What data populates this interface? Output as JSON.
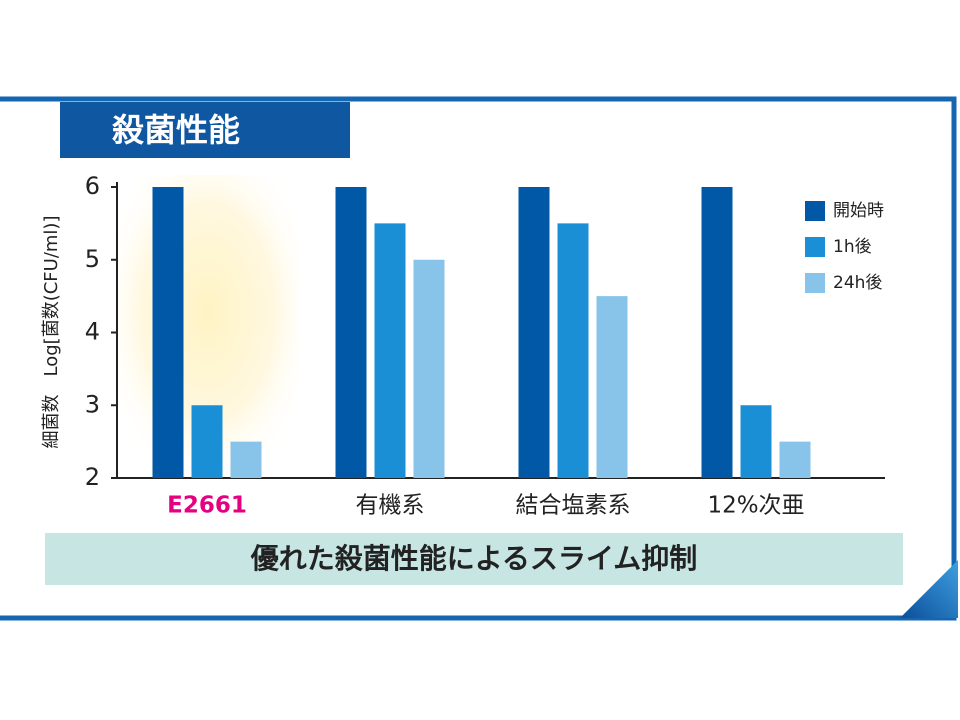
{
  "chart_data": {
    "type": "bar",
    "title": "殺菌性能",
    "y_label": "細菌数　Log[菌数(CFU/ml)]",
    "categories": [
      "E2661",
      "有機系",
      "結合塩素系",
      "12%次亜"
    ],
    "series": [
      {
        "name": "開始時",
        "color": "#0058a6",
        "values": [
          6,
          6,
          6,
          6
        ]
      },
      {
        "name": "1h後",
        "color": "#1b8fd5",
        "values": [
          3,
          5.5,
          5.5,
          3
        ]
      },
      {
        "name": "24h後",
        "color": "#88c3ea",
        "values": [
          2.5,
          5,
          4.5,
          2.5
        ]
      }
    ],
    "ylim": [
      2,
      6
    ],
    "yticks": [
      2,
      3,
      4,
      5,
      6
    ],
    "legend": "upper right",
    "annotation": "優れた殺菌性能によるスライム抑制"
  }
}
